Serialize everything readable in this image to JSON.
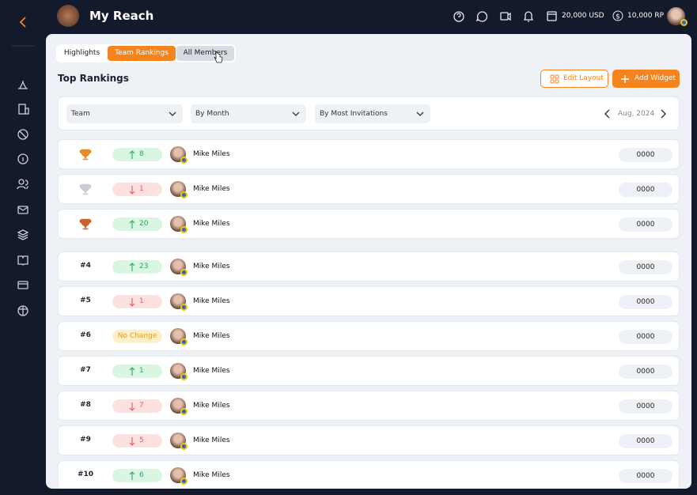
{
  "header": {
    "title": "My Reach",
    "balance": "20,000 USD",
    "points": "10,000 RP"
  },
  "tabs": [
    {
      "label": "Highlights",
      "active": false
    },
    {
      "label": "Team Rankings",
      "active": true
    },
    {
      "label": "All Members",
      "active": false
    }
  ],
  "section": {
    "title": "Top Rankings",
    "buttons": [
      "Edit Layout",
      "Add Widget"
    ]
  },
  "filters": [
    "Team",
    "By Month",
    "By Most Invitations"
  ],
  "period": "Aug, 2024",
  "rows": [
    {
      "medal": "gold",
      "change": {
        "direction": "up",
        "text": "8"
      },
      "name": "Mike Miles",
      "score": "0000"
    },
    {
      "medal": "silver",
      "change": {
        "direction": "down",
        "text": "1"
      },
      "name": "Mike Miles",
      "score": "0000"
    },
    {
      "medal": "bronze",
      "change": {
        "direction": "up",
        "text": "20"
      },
      "name": "Mike Miles",
      "score": "0000"
    },
    {
      "rank": "#4",
      "change": {
        "direction": "up",
        "text": "23"
      },
      "name": "Mike Miles",
      "score": "0000"
    },
    {
      "rank": "#5",
      "change": {
        "direction": "down",
        "text": "1"
      },
      "name": "Mike Miles",
      "score": "0000"
    },
    {
      "rank": "#6",
      "change": {
        "direction": "none",
        "text": "No Change"
      },
      "name": "Mike Miles",
      "score": "0000"
    },
    {
      "rank": "#7",
      "change": {
        "direction": "up",
        "text": "1"
      },
      "name": "Mike Miles",
      "score": "0000"
    },
    {
      "rank": "#8",
      "change": {
        "direction": "down",
        "text": "7"
      },
      "name": "Mike Miles",
      "score": "0000"
    },
    {
      "rank": "#9",
      "change": {
        "direction": "down",
        "text": "5"
      },
      "name": "Mike Miles",
      "score": "0000"
    },
    {
      "rank": "#10",
      "change": {
        "direction": "up",
        "text": "6"
      },
      "name": "Mike Miles",
      "score": "0000"
    }
  ]
}
